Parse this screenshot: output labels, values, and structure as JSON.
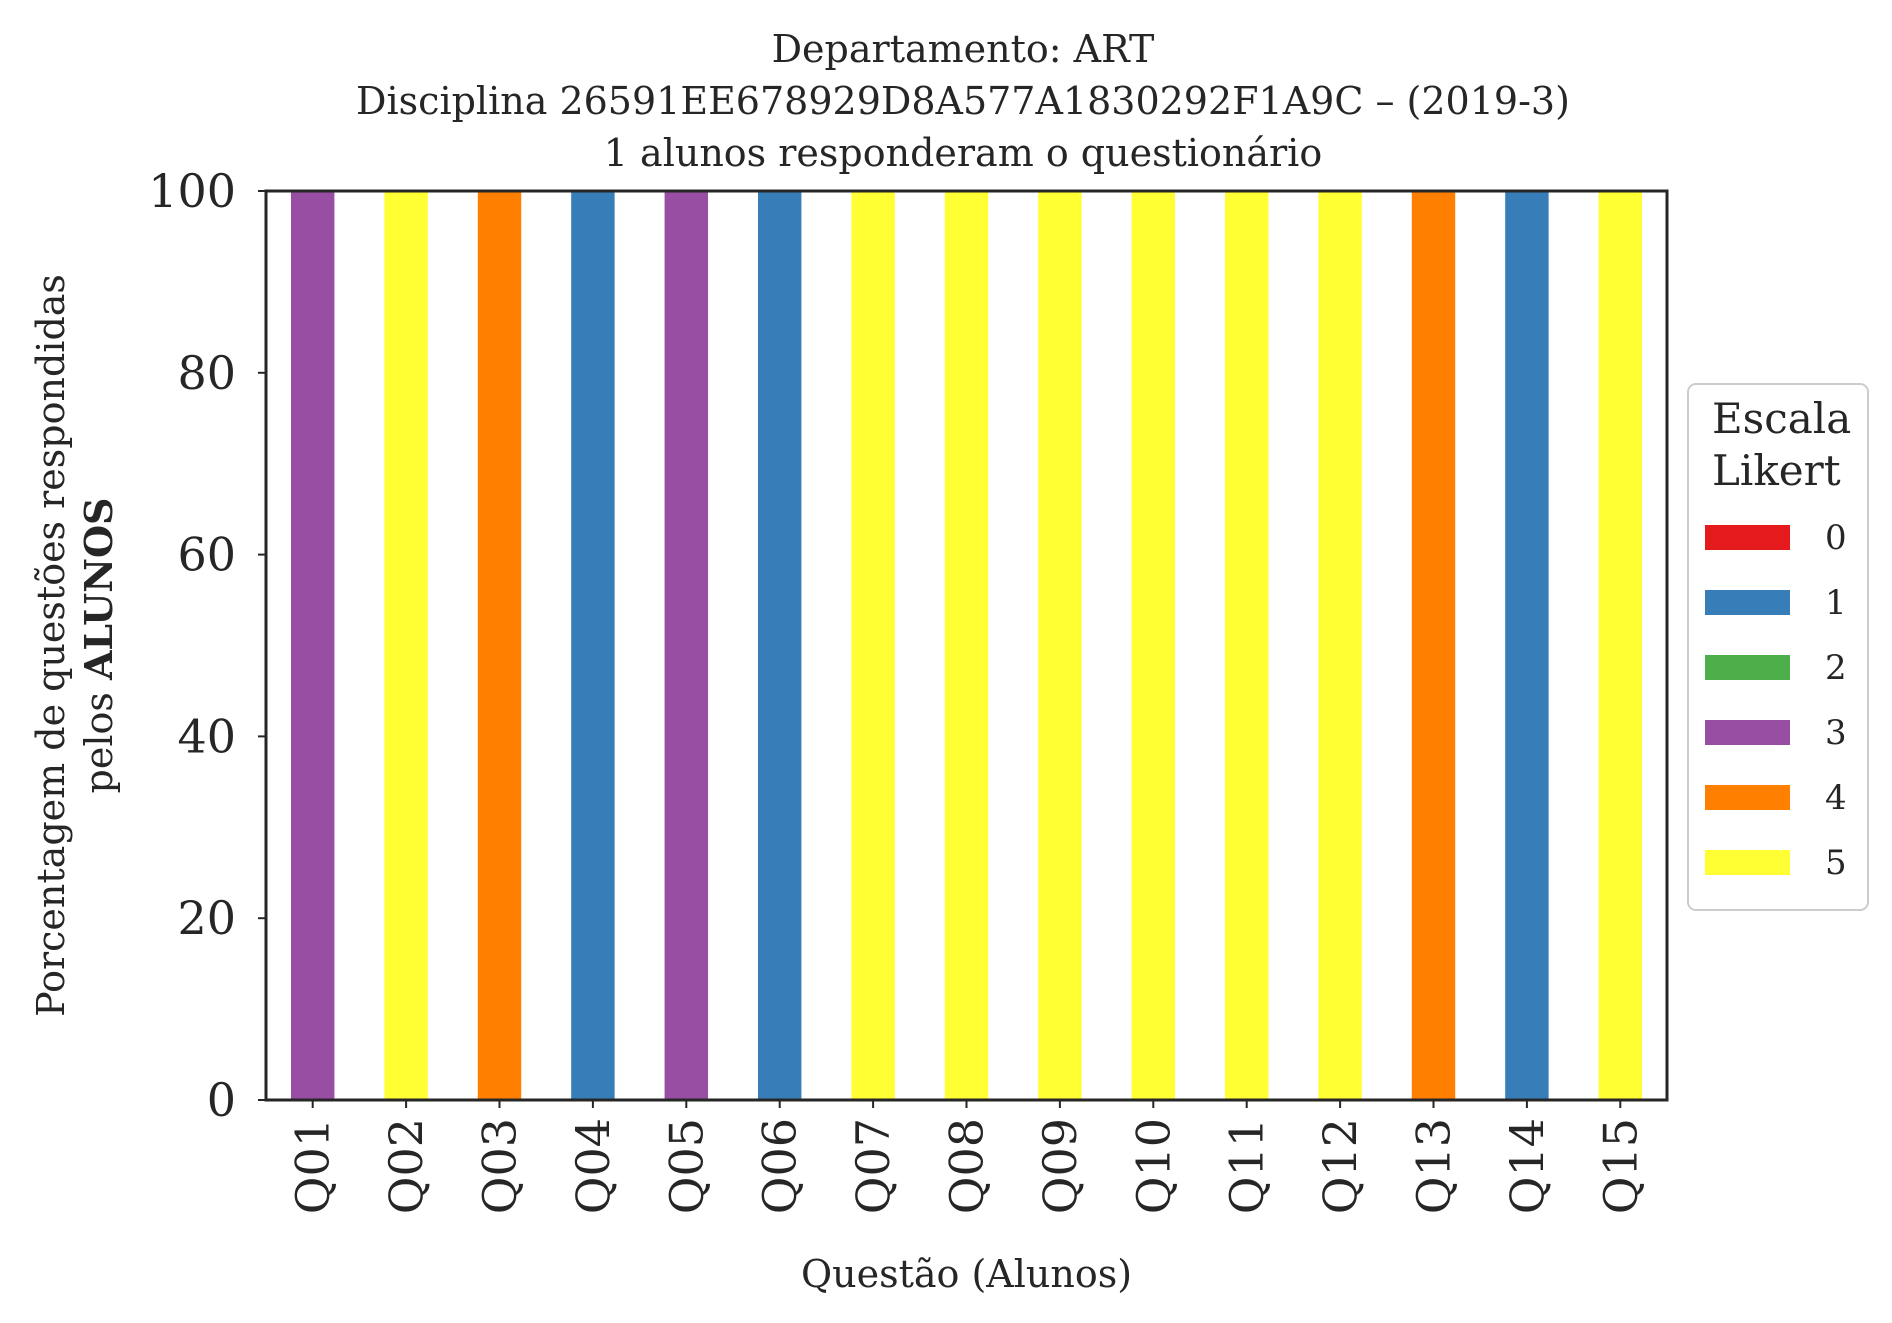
{
  "chart_data": {
    "type": "bar",
    "stacked": true,
    "title_lines": [
      "Departamento: ART",
      "Disciplina 26591EE678929D8A577A1830292F1A9C – (2019-3)",
      "1 alunos responderam o questionário"
    ],
    "xlabel": "Questão (Alunos)",
    "ylabel_line1": "Porcentagem de questões respondidas",
    "ylabel_line2_prefix": "pelos ",
    "ylabel_line2_bold": "ALUNOS",
    "ylim": [
      0,
      100
    ],
    "yticks": [
      "0",
      "20",
      "40",
      "60",
      "80",
      "100"
    ],
    "categories": [
      "Q01",
      "Q02",
      "Q03",
      "Q04",
      "Q05",
      "Q06",
      "Q07",
      "Q08",
      "Q09",
      "Q10",
      "Q11",
      "Q12",
      "Q13",
      "Q14",
      "Q15"
    ],
    "series": [
      {
        "name": "0",
        "color": "#e41a1c",
        "values": [
          0,
          0,
          0,
          0,
          0,
          0,
          0,
          0,
          0,
          0,
          0,
          0,
          0,
          0,
          0
        ]
      },
      {
        "name": "1",
        "color": "#377eb8",
        "values": [
          0,
          0,
          0,
          100,
          0,
          100,
          0,
          0,
          0,
          0,
          0,
          0,
          0,
          100,
          0
        ]
      },
      {
        "name": "2",
        "color": "#4daf4a",
        "values": [
          0,
          0,
          0,
          0,
          0,
          0,
          0,
          0,
          0,
          0,
          0,
          0,
          0,
          0,
          0
        ]
      },
      {
        "name": "3",
        "color": "#984ea3",
        "values": [
          100,
          0,
          0,
          0,
          100,
          0,
          0,
          0,
          0,
          0,
          0,
          0,
          0,
          0,
          0
        ]
      },
      {
        "name": "4",
        "color": "#ff7f00",
        "values": [
          0,
          0,
          100,
          0,
          0,
          0,
          0,
          0,
          0,
          0,
          0,
          0,
          100,
          0,
          0
        ]
      },
      {
        "name": "5",
        "color": "#ffff33",
        "values": [
          0,
          100,
          0,
          0,
          0,
          0,
          100,
          100,
          100,
          100,
          100,
          100,
          0,
          0,
          100
        ]
      }
    ],
    "legend": {
      "title_lines": [
        "Escala",
        "Likert"
      ],
      "placement": "center-right outside"
    },
    "grid": false
  }
}
